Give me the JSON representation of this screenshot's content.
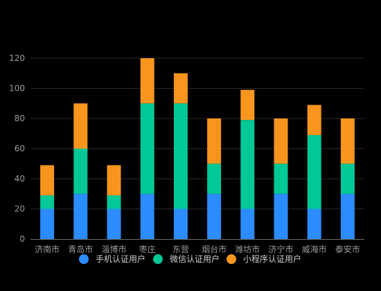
{
  "chart_data": {
    "type": "bar",
    "stacked": true,
    "categories": [
      "济南市",
      "青岛市",
      "淄博市",
      "枣庄",
      "东营",
      "烟台市",
      "潍坊市",
      "济宁市",
      "威海市",
      "泰安市"
    ],
    "series": [
      {
        "name": "手机认证用户",
        "color": "#2b8cff",
        "values": [
          20,
          30,
          20,
          30,
          20,
          30,
          20,
          30,
          20,
          30
        ]
      },
      {
        "name": "微信认证用户",
        "color": "#00c896",
        "values": [
          9,
          30,
          9,
          60,
          70,
          20,
          59,
          20,
          49,
          20
        ]
      },
      {
        "name": "小程序认证用户",
        "color": "#f7951d",
        "values": [
          20,
          30,
          20,
          30,
          20,
          30,
          20,
          30,
          20,
          30
        ]
      }
    ],
    "ylim": [
      0,
      120
    ],
    "yticks": [
      "0",
      "20",
      "40",
      "60",
      "80",
      "100",
      "120"
    ],
    "grid": "horizontal",
    "legend_position": "bottom"
  }
}
